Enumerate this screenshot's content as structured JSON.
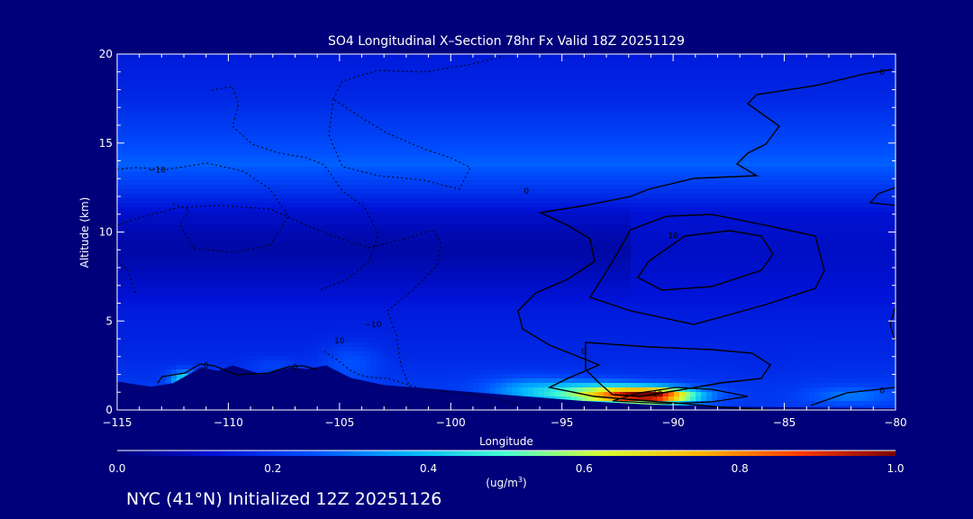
{
  "chart_data": {
    "type": "heatmap",
    "title": "SO4 Longitudinal X–Section 78hr  Fx Valid 18Z 20251129",
    "xlabel": "Longitude",
    "ylabel": "Altitude (km)",
    "xlim": [
      -115,
      -80
    ],
    "ylim": [
      0,
      20
    ],
    "x_ticks": [
      "−115",
      "−110",
      "−105",
      "−100",
      "−95",
      "−90",
      "−85",
      "−80"
    ],
    "x_tick_values": [
      -115,
      -110,
      -105,
      -100,
      -95,
      -90,
      -85,
      -80
    ],
    "y_ticks": [
      "0",
      "5",
      "10",
      "15",
      "20"
    ],
    "y_tick_values": [
      0,
      5,
      10,
      15,
      20
    ],
    "colorbar": {
      "min": 0.0,
      "max": 1.0,
      "ticks": [
        "0.0",
        "0.2",
        "0.4",
        "0.6",
        "0.8",
        "1.0"
      ],
      "tick_values": [
        0.0,
        0.2,
        0.4,
        0.6,
        0.8,
        1.0
      ],
      "unit_main": "(ug/m",
      "unit_sup": "3",
      "unit_close": ")"
    },
    "terrain": [
      {
        "lon": -115,
        "alt": 1.6
      },
      {
        "lon": -113.5,
        "alt": 1.3
      },
      {
        "lon": -112.5,
        "alt": 1.5
      },
      {
        "lon": -111.2,
        "alt": 2.4
      },
      {
        "lon": -110.5,
        "alt": 2.2
      },
      {
        "lon": -109.8,
        "alt": 2.5
      },
      {
        "lon": -108.5,
        "alt": 2.0
      },
      {
        "lon": -107.2,
        "alt": 2.4
      },
      {
        "lon": -106.5,
        "alt": 2.3
      },
      {
        "lon": -105.6,
        "alt": 2.5
      },
      {
        "lon": -104.5,
        "alt": 1.8
      },
      {
        "lon": -103,
        "alt": 1.4
      },
      {
        "lon": -100,
        "alt": 1.1
      },
      {
        "lon": -97,
        "alt": 0.8
      },
      {
        "lon": -94,
        "alt": 0.5
      },
      {
        "lon": -91,
        "alt": 0.3
      },
      {
        "lon": -88,
        "alt": 0.2
      },
      {
        "lon": -85,
        "alt": 0.15
      },
      {
        "lon": -80,
        "alt": 0.1
      }
    ],
    "features": [
      {
        "lon": -91,
        "alt": 0.8,
        "value": 0.95,
        "slon": 2.0,
        "salt": 0.45
      },
      {
        "lon": -93.5,
        "alt": 0.9,
        "value": 0.55,
        "slon": 2.2,
        "salt": 0.6
      },
      {
        "lon": -96.5,
        "alt": 1.1,
        "value": 0.35,
        "slon": 2.0,
        "salt": 0.7
      },
      {
        "lon": -112,
        "alt": 1.7,
        "value": 0.45,
        "slon": 0.6,
        "salt": 0.5
      },
      {
        "lon": -104.5,
        "alt": 2.7,
        "value": 0.25,
        "slon": 1.3,
        "salt": 1.0
      },
      {
        "lon": -108,
        "alt": 2.5,
        "value": 0.22,
        "slon": 1.0,
        "salt": 0.5
      },
      {
        "lon": -82,
        "alt": 0.8,
        "value": 0.3,
        "slon": 2.0,
        "salt": 0.5
      },
      {
        "lon": -86,
        "alt": 2.0,
        "value": 0.18,
        "slon": 2.0,
        "salt": 1.0
      }
    ],
    "contour_labels": [
      {
        "text": "−10",
        "lon": -113.2,
        "alt": 13.5
      },
      {
        "text": "0",
        "lon": -111.0,
        "alt": 2.5
      },
      {
        "text": "0",
        "lon": -107.0,
        "alt": 2.4
      },
      {
        "text": "10",
        "lon": -105.0,
        "alt": 3.9
      },
      {
        "text": "−10",
        "lon": -103.5,
        "alt": 4.8
      },
      {
        "text": "0",
        "lon": -94.0,
        "alt": 3.3
      },
      {
        "text": "0",
        "lon": -96.6,
        "alt": 12.3
      },
      {
        "text": "10",
        "lon": -90.0,
        "alt": 9.8
      },
      {
        "text": "10",
        "lon": -90.7,
        "alt": 0.9
      },
      {
        "text": "0",
        "lon": -80.6,
        "alt": 1.1
      },
      {
        "text": "0",
        "lon": -80.6,
        "alt": 19.0
      }
    ]
  },
  "footer": "NYC (41°N) Initialized 12Z 20251126"
}
